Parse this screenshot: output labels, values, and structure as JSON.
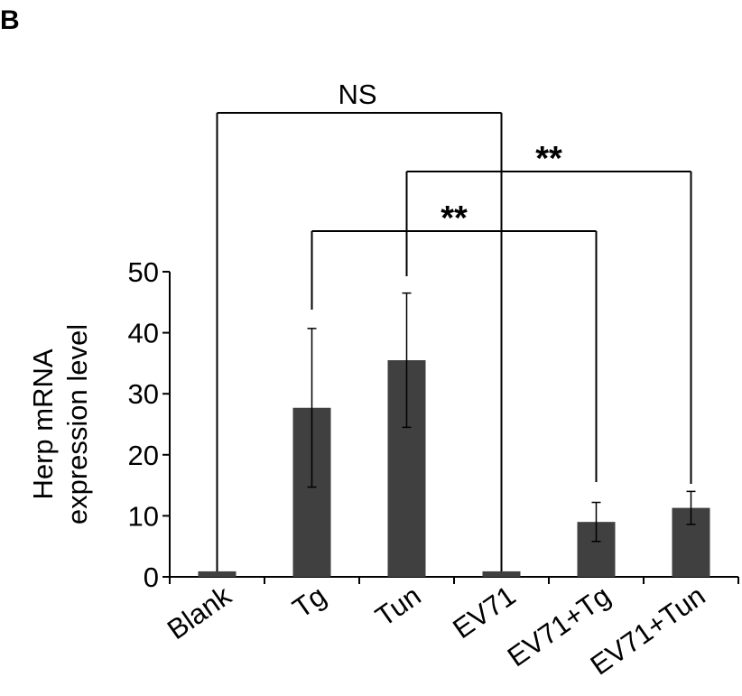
{
  "panel_label": "B",
  "chart_data": {
    "type": "bar",
    "title": "",
    "xlabel": "",
    "ylabel": "Herp mRNA expression level",
    "ylabel_lines": [
      "Herp mRNA",
      "expression level"
    ],
    "ylim": [
      0,
      50
    ],
    "yticks": [
      0,
      10,
      20,
      30,
      40,
      50
    ],
    "categories": [
      "Blank",
      "Tg",
      "Tun",
      "EV71",
      "EV71+Tg",
      "EV71+Tun"
    ],
    "values": [
      0.9,
      27.7,
      35.5,
      0.9,
      9.0,
      11.3
    ],
    "errors": [
      0,
      13.0,
      11.0,
      0,
      3.2,
      2.7
    ],
    "bar_color": "#404040",
    "significance": [
      {
        "from": "Blank",
        "to": "EV71",
        "label": "NS"
      },
      {
        "from": "Tun",
        "to": "EV71+Tun",
        "label": "**"
      },
      {
        "from": "Tg",
        "to": "EV71+Tg",
        "label": "**"
      }
    ]
  }
}
